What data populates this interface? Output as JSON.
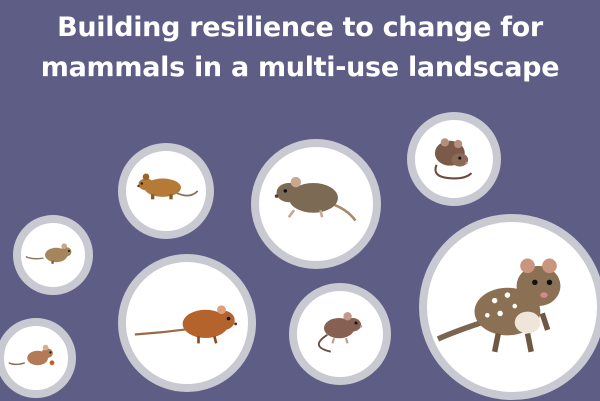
{
  "title": {
    "line1": "Building resilience to change for",
    "line2": "mammals in a multi-use landscape"
  },
  "colors": {
    "background": "#5e5d86",
    "bubble_fill": "#ffffff",
    "bubble_ring": "#c9c9d2"
  },
  "animals": [
    {
      "name": "antechinus-icon"
    },
    {
      "name": "dusky-rat-icon"
    },
    {
      "name": "pygmy-possum-icon"
    },
    {
      "name": "small-mouse-icon"
    },
    {
      "name": "bandicoot-rat-icon"
    },
    {
      "name": "rat-icon"
    },
    {
      "name": "quoll-icon"
    },
    {
      "name": "tiny-mouse-icon"
    }
  ]
}
